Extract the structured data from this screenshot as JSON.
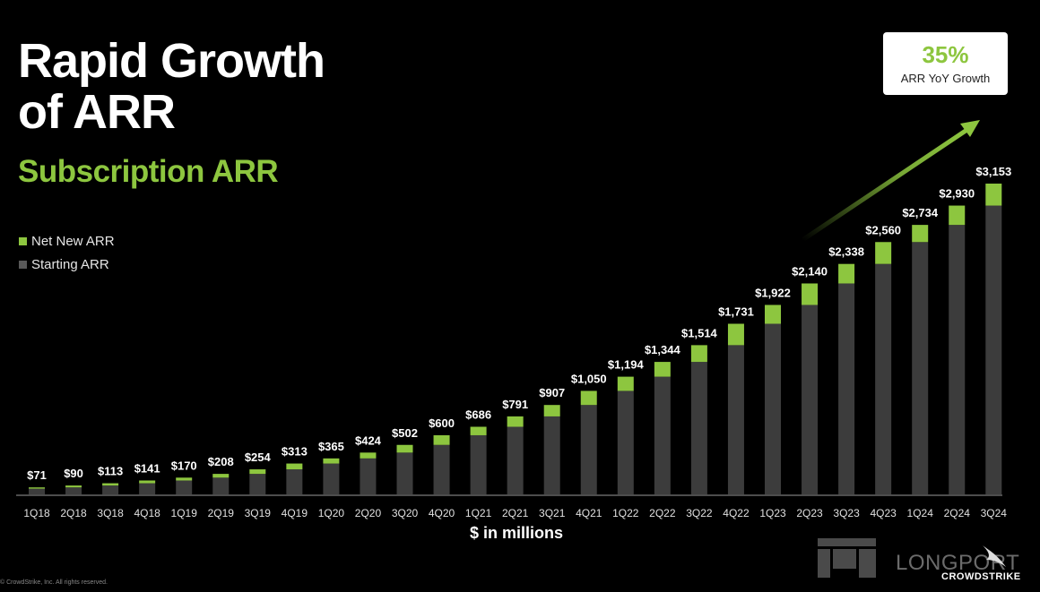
{
  "header": {
    "title_line1": "Rapid Growth",
    "title_line2": "of ARR",
    "subtitle": "Subscription ARR"
  },
  "legend": [
    {
      "label": "Net New ARR",
      "color": "#8dc63f"
    },
    {
      "label": "Starting ARR",
      "color": "#3c3c3c"
    }
  ],
  "callout": {
    "value": "35%",
    "label": "ARR YoY Growth"
  },
  "footer": {
    "copyright": "© CrowdStrike, Inc. All rights reserved.",
    "partner": "LONGPORT",
    "brand": "CROWDSTRIKE"
  },
  "colors": {
    "accent": "#8dc63f",
    "bar": "#3c3c3c",
    "background": "#000000"
  },
  "chart_data": {
    "type": "bar",
    "stacked": true,
    "title": "Subscription ARR",
    "xlabel": "$ in millions",
    "ylabel": "",
    "categories": [
      "1Q18",
      "2Q18",
      "3Q18",
      "4Q18",
      "1Q19",
      "2Q19",
      "3Q19",
      "4Q19",
      "1Q20",
      "2Q20",
      "3Q20",
      "4Q20",
      "1Q21",
      "2Q21",
      "3Q21",
      "4Q21",
      "1Q22",
      "2Q22",
      "3Q22",
      "4Q22",
      "1Q23",
      "2Q23",
      "3Q23",
      "4Q23",
      "1Q24",
      "2Q24",
      "3Q24"
    ],
    "totals": [
      71,
      90,
      113,
      141,
      170,
      208,
      254,
      313,
      365,
      424,
      502,
      600,
      686,
      791,
      907,
      1050,
      1194,
      1344,
      1514,
      1731,
      1922,
      2140,
      2338,
      2560,
      2734,
      2930,
      3153
    ],
    "total_labels": [
      "$71",
      "$90",
      "$113",
      "$141",
      "$170",
      "$208",
      "$254",
      "$313",
      "$365",
      "$424",
      "$502",
      "$600",
      "$686",
      "$791",
      "$907",
      "$1,050",
      "$1,194",
      "$1,344",
      "$1,514",
      "$1,731",
      "$1,922",
      "$2,140",
      "$2,338",
      "$2,560",
      "$2,734",
      "$2,930",
      "$3,153"
    ],
    "series": [
      {
        "name": "Starting ARR",
        "values": [
          58,
          71,
          90,
          113,
          141,
          170,
          208,
          254,
          313,
          365,
          424,
          502,
          600,
          686,
          791,
          907,
          1050,
          1194,
          1344,
          1514,
          1731,
          1922,
          2140,
          2338,
          2560,
          2734,
          2930
        ]
      },
      {
        "name": "Net New ARR",
        "values": [
          13,
          19,
          23,
          28,
          29,
          38,
          46,
          59,
          52,
          59,
          78,
          98,
          86,
          105,
          116,
          143,
          144,
          150,
          170,
          217,
          191,
          218,
          198,
          222,
          174,
          196,
          223
        ]
      }
    ],
    "ylim": [
      0,
      3300
    ],
    "grid": false,
    "legend_position": "left",
    "annotation": "35% ARR YoY Growth"
  }
}
